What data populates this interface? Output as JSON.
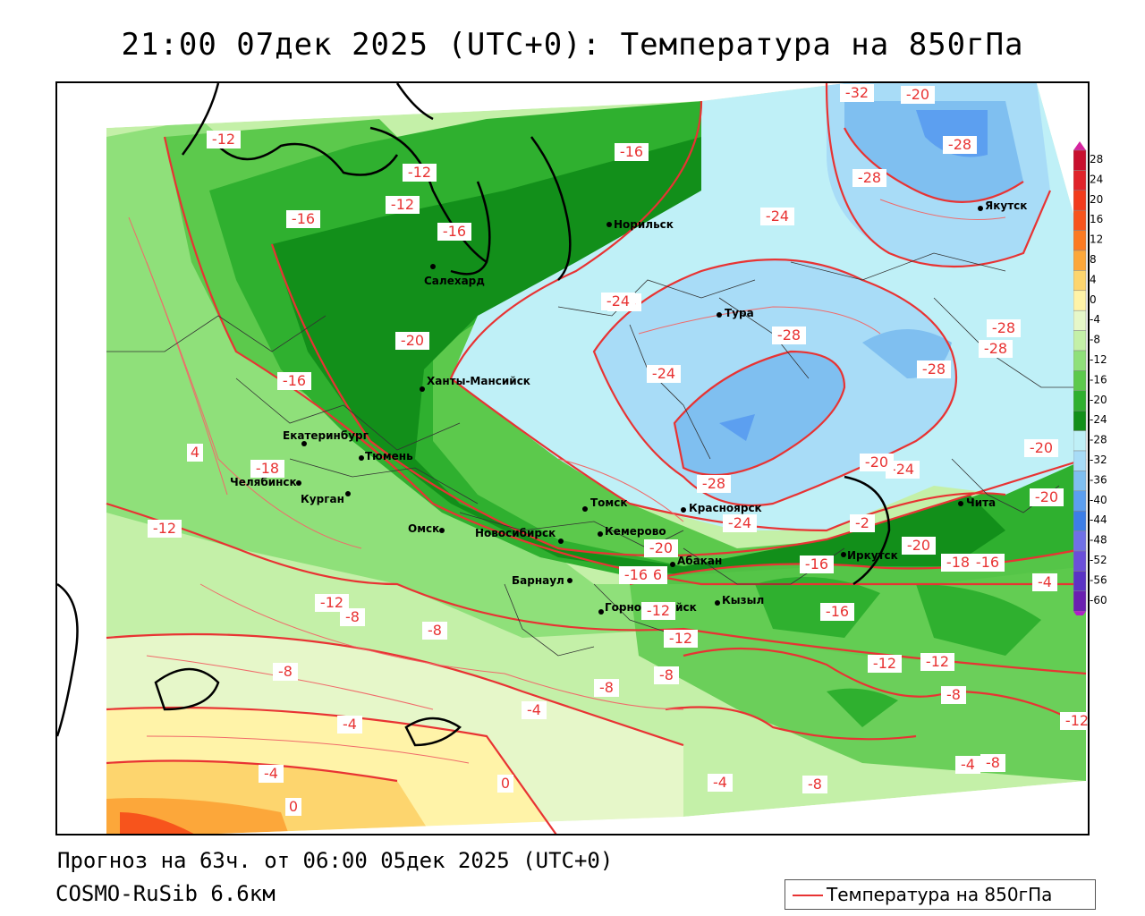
{
  "title": "21:00 07дек 2025 (UTC+0): Температура на 850гПа",
  "footer": {
    "forecast": "Прогноз на 63ч. от 06:00 05дек 2025 (UTC+0)",
    "model": "COSMO-RuSib 6.6км"
  },
  "legend": {
    "label": "Температура на 850гПа",
    "color": "#e83333"
  },
  "colorbar": {
    "levels": [
      "28",
      "24",
      "20",
      "16",
      "12",
      "8",
      "4",
      "0",
      "-4",
      "-8",
      "-12",
      "-16",
      "-20",
      "-24",
      "-28",
      "-32",
      "-36",
      "-40",
      "-44",
      "-48",
      "-52",
      "-56",
      "-60"
    ],
    "colors": [
      "#c8102e",
      "#e0232a",
      "#f23b1c",
      "#f7541c",
      "#fb7a22",
      "#fca73a",
      "#fdd56e",
      "#fff3a8",
      "#e6f7c9",
      "#c4f0a8",
      "#8fe07a",
      "#5cc94c",
      "#2fb02f",
      "#128f1a",
      "#bff0f7",
      "#a8dcf7",
      "#7fbff0",
      "#5c9ff0",
      "#3d7ee6",
      "#7070e6",
      "#6b4fd9",
      "#5a33c4",
      "#6a1fb0"
    ],
    "top_color": "#d6249f",
    "bottom_color": "#b020c8"
  },
  "cities": [
    {
      "name": "Норильск"
    },
    {
      "name": "Якутск"
    },
    {
      "name": "Салехард"
    },
    {
      "name": "Тура"
    },
    {
      "name": "Ханты-Мансийск"
    },
    {
      "name": "Екатеринбург"
    },
    {
      "name": "Тюмень"
    },
    {
      "name": "Челябинск"
    },
    {
      "name": "Курган"
    },
    {
      "name": "Омск"
    },
    {
      "name": "Новосибирск"
    },
    {
      "name": "Томск"
    },
    {
      "name": "Кемерово"
    },
    {
      "name": "Красноярск"
    },
    {
      "name": "Барнаул"
    },
    {
      "name": "Абакан"
    },
    {
      "name": "Горно-Алтайск"
    },
    {
      "name": "Кызыл"
    },
    {
      "name": "Иркутск"
    },
    {
      "name": "Чита"
    }
  ],
  "isotherm_labels": [
    "-12",
    "-12",
    "-12",
    "-16",
    "-16",
    "-16",
    "-16",
    "-20",
    "-20",
    "-24",
    "-24",
    "-24",
    "-28",
    "-28",
    "-32",
    "-28",
    "-28",
    "-28",
    "-24",
    "-20",
    "-20",
    "-20",
    "-24",
    "-28",
    "-24",
    "-16",
    "-20",
    "-16",
    "-16",
    "-16",
    "-16",
    "-12",
    "-12",
    "-12",
    "-12",
    "-12",
    "-12",
    "-12",
    "-8",
    "-8",
    "-8",
    "-8",
    "-8",
    "-8",
    "-8",
    "-8",
    "-4",
    "-4",
    "-4",
    "-4",
    "-4",
    "-4",
    "0",
    "0",
    "4",
    "-18",
    "-2",
    "-18",
    "-28",
    "-20"
  ]
}
